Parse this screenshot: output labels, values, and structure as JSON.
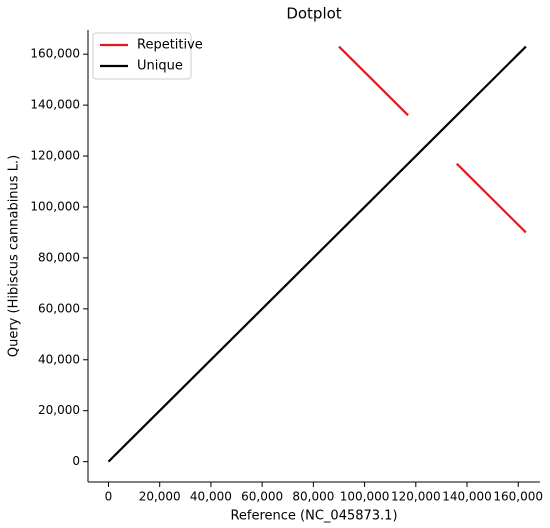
{
  "chart_data": {
    "type": "line",
    "title": "Dotplot",
    "x_label": "Reference (NC_045873.1)",
    "y_label": "Query (Hibiscus cannabinus L.)",
    "series": [
      {
        "name": "Repetitive",
        "color": "#e3191c",
        "x": [
          90000,
          117000,
          null,
          136000,
          163000
        ],
        "values": [
          163000,
          136000,
          null,
          117000,
          90000
        ]
      },
      {
        "name": "Unique",
        "color": "#000000",
        "x": [
          0,
          163000
        ],
        "values": [
          0,
          163000
        ]
      }
    ],
    "xlim": [
      -8000,
      168500
    ],
    "ylim": [
      -8000,
      169500
    ],
    "xticks": [
      0,
      {
        "value": 20000,
        "label": "20,000"
      },
      {
        "value": 40000,
        "label": "40,000"
      },
      {
        "value": 60000,
        "label": "60,000"
      },
      {
        "value": 80000,
        "label": "80,000"
      },
      {
        "value": 100000,
        "label": "100,000"
      },
      {
        "value": 120000,
        "label": "120,000"
      },
      {
        "value": 140000,
        "label": "140,000"
      },
      {
        "value": 160000,
        "label": "160,000"
      }
    ],
    "yticks": [
      0,
      {
        "value": 20000,
        "label": "20,000"
      },
      {
        "value": 40000,
        "label": "40,000"
      },
      {
        "value": 60000,
        "label": "60,000"
      },
      {
        "value": 80000,
        "label": "80,000"
      },
      {
        "value": 100000,
        "label": "100,000"
      },
      {
        "value": 120000,
        "label": "120,000"
      },
      {
        "value": 140000,
        "label": "140,000"
      },
      {
        "value": 160000,
        "label": "160,000"
      }
    ],
    "grid": false,
    "legend": "upper-left"
  }
}
